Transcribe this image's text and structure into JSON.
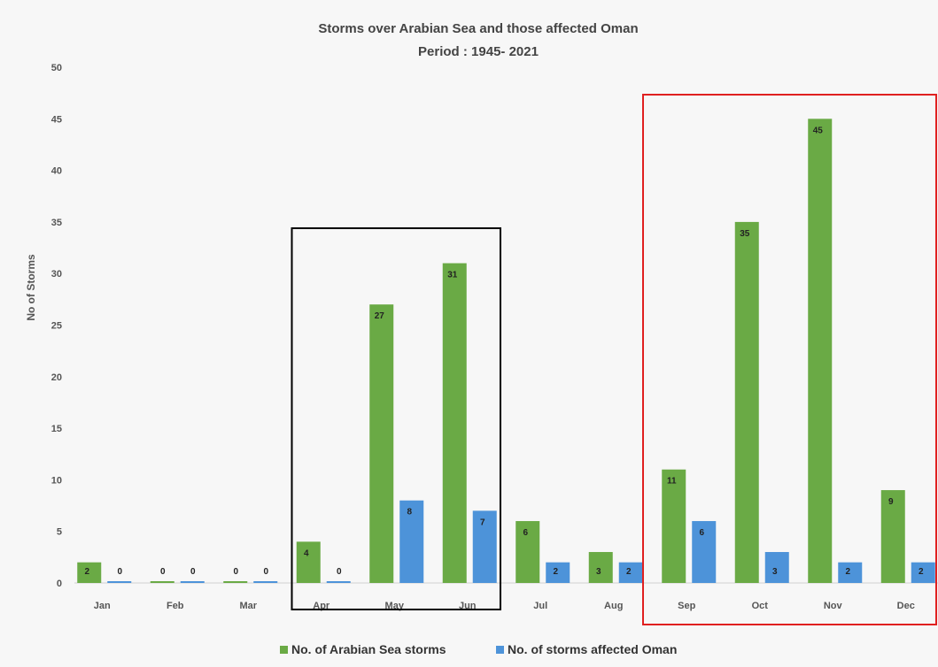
{
  "chart_data": {
    "type": "bar",
    "title": "Storms over Arabian Sea and those affected Oman",
    "subtitle": "Period : 1945- 2021",
    "ylabel": "No of Storms",
    "xlabel": "",
    "ylim": [
      0,
      50
    ],
    "yticks": [
      0,
      5,
      10,
      15,
      20,
      25,
      30,
      35,
      40,
      45,
      50
    ],
    "categories": [
      "Jan",
      "Feb",
      "Mar",
      "Apr",
      "May",
      "Jun",
      "Jul",
      "Aug",
      "Sep",
      "Oct",
      "Nov",
      "Dec"
    ],
    "series": [
      {
        "name": "No. of Arabian Sea storms",
        "values": [
          2,
          0,
          0,
          4,
          27,
          31,
          6,
          3,
          11,
          35,
          45,
          9
        ],
        "color": "#6aaa45"
      },
      {
        "name": "No. of storms affected Oman",
        "values": [
          0,
          0,
          0,
          0,
          8,
          7,
          2,
          2,
          6,
          3,
          2,
          2
        ],
        "color": "#4d93d9"
      }
    ],
    "legend_position": "bottom-center",
    "grid": false,
    "highlight_boxes": [
      {
        "from": "Apr",
        "to": "Jun",
        "color": "#000000"
      },
      {
        "from": "Sep",
        "to": "Dec",
        "color": "#e02020"
      }
    ]
  }
}
